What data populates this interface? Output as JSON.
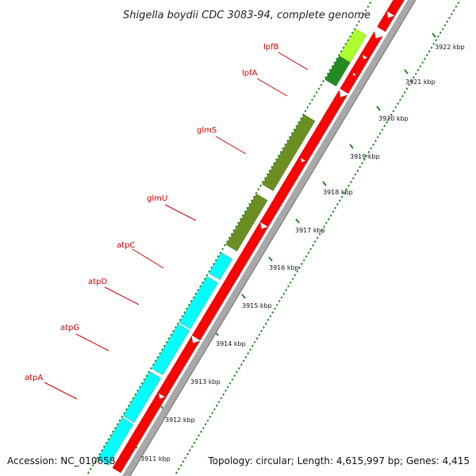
{
  "title": "Shigella boydii CDC 3083-94, complete genome",
  "footer": {
    "accession": "Accession: NC_010658",
    "topology": "Topology: circular; Length: 4,615,997 bp; Genes: 4,415"
  },
  "colors": {
    "forward_cds": "#ff0000",
    "reverse_cds": "#00ffff",
    "backbone": "#a8a8a8",
    "ticks": "#228b22",
    "label_line": "#cc0000",
    "glm": "#6b8e23",
    "lpfB": "#adff2f",
    "lpfA": "#228b22"
  },
  "genes": [
    {
      "name": "atpA"
    },
    {
      "name": "atpG"
    },
    {
      "name": "atpD"
    },
    {
      "name": "atpC"
    },
    {
      "name": "glmU"
    },
    {
      "name": "glmS"
    },
    {
      "name": "lpfA"
    },
    {
      "name": "lpfB"
    }
  ],
  "scale_labels": [
    "3911 kbp",
    "3912 kbp",
    "3913 kbp",
    "3914 kbp",
    "3915 kbp",
    "3916 kbp",
    "3917 kbp",
    "3918 kbp",
    "3919 kbp",
    "3920 kbp",
    "3921 kbp",
    "3922 kbp"
  ]
}
